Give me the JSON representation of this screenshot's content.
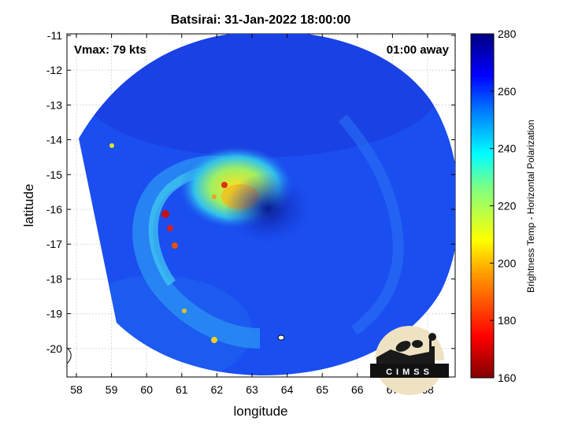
{
  "title": "Batsirai: 31-Jan-2022 18:00:00",
  "vmax_label": "Vmax: 79 kts",
  "away_label": "01:00 away",
  "xlabel": "longitude",
  "ylabel": "latitude",
  "x_ticks": [
    "58",
    "59",
    "60",
    "61",
    "62",
    "63",
    "64",
    "65",
    "66",
    "67",
    "68"
  ],
  "y_ticks": [
    "-11",
    "-12",
    "-13",
    "-14",
    "-15",
    "-16",
    "-17",
    "-18",
    "-19",
    "-20"
  ],
  "colorbar": {
    "label": "Brightness Temp - Horizontal Polarization",
    "ticks": [
      "280",
      "260",
      "240",
      "220",
      "200",
      "180",
      "160"
    ],
    "min": 160,
    "max": 280
  },
  "logo_text": "CIMSS",
  "colors": {
    "ring_blue": "#1830e0",
    "swath_blue": "#1a52f0",
    "eye_dark": "#0a1aa8",
    "band_cyan": "#30c8f0",
    "band_yellow": "#e8e020",
    "band_red": "#c81010"
  }
}
